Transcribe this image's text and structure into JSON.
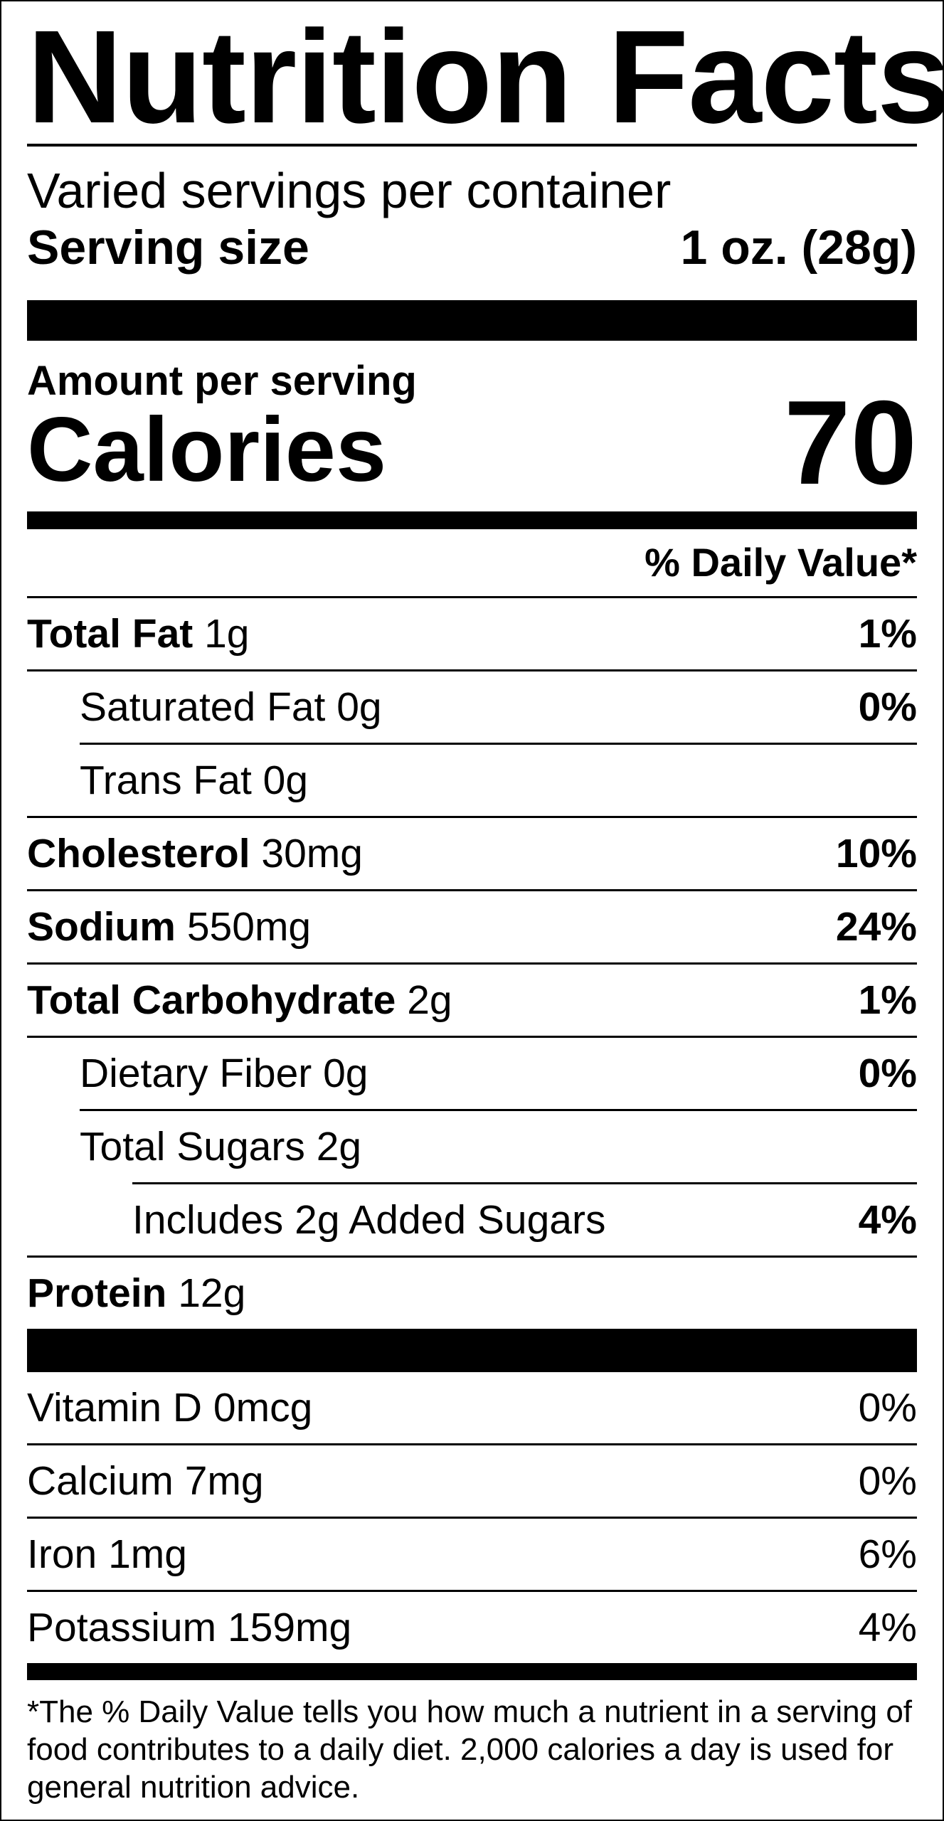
{
  "title": "Nutrition Facts",
  "servings_per_container": "Varied servings per container",
  "serving_size": {
    "label": "Serving size",
    "value": "1 oz. (28g)"
  },
  "amount_per_serving": "Amount per serving",
  "calories": {
    "label": "Calories",
    "value": "70"
  },
  "daily_value_header": "% Daily Value*",
  "nutrients": [
    {
      "name": "Total Fat",
      "amount": "1g",
      "dv": "1%",
      "bold": true,
      "indent": 0
    },
    {
      "name": "Saturated Fat",
      "amount": "0g",
      "dv": "0%",
      "bold": false,
      "indent": 1
    },
    {
      "name": "Trans Fat",
      "amount": "0g",
      "dv": "",
      "bold": false,
      "indent": 1
    },
    {
      "name": "Cholesterol",
      "amount": "30mg",
      "dv": "10%",
      "bold": true,
      "indent": 0
    },
    {
      "name": "Sodium",
      "amount": "550mg",
      "dv": "24%",
      "bold": true,
      "indent": 0
    },
    {
      "name": "Total Carbohydrate",
      "amount": "2g",
      "dv": "1%",
      "bold": true,
      "indent": 0
    },
    {
      "name": "Dietary Fiber",
      "amount": "0g",
      "dv": "0%",
      "bold": false,
      "indent": 1
    },
    {
      "name": "Total Sugars",
      "amount": "2g",
      "dv": "",
      "bold": false,
      "indent": 1
    },
    {
      "name": "Includes 2g Added Sugars",
      "amount": "",
      "dv": "4%",
      "bold": false,
      "indent": 2
    },
    {
      "name": "Protein",
      "amount": "12g",
      "dv": "",
      "bold": true,
      "indent": 0
    }
  ],
  "vitamins": [
    {
      "name": "Vitamin D",
      "amount": "0mcg",
      "dv": "0%"
    },
    {
      "name": "Calcium",
      "amount": "7mg",
      "dv": "0%"
    },
    {
      "name": "Iron",
      "amount": "1mg",
      "dv": "6%"
    },
    {
      "name": "Potassium",
      "amount": "159mg",
      "dv": "4%"
    }
  ],
  "footnote": "*The % Daily Value tells you how much a nutrient in a serving of food contributes to a daily diet. 2,000 calories a day is used for general nutrition advice."
}
